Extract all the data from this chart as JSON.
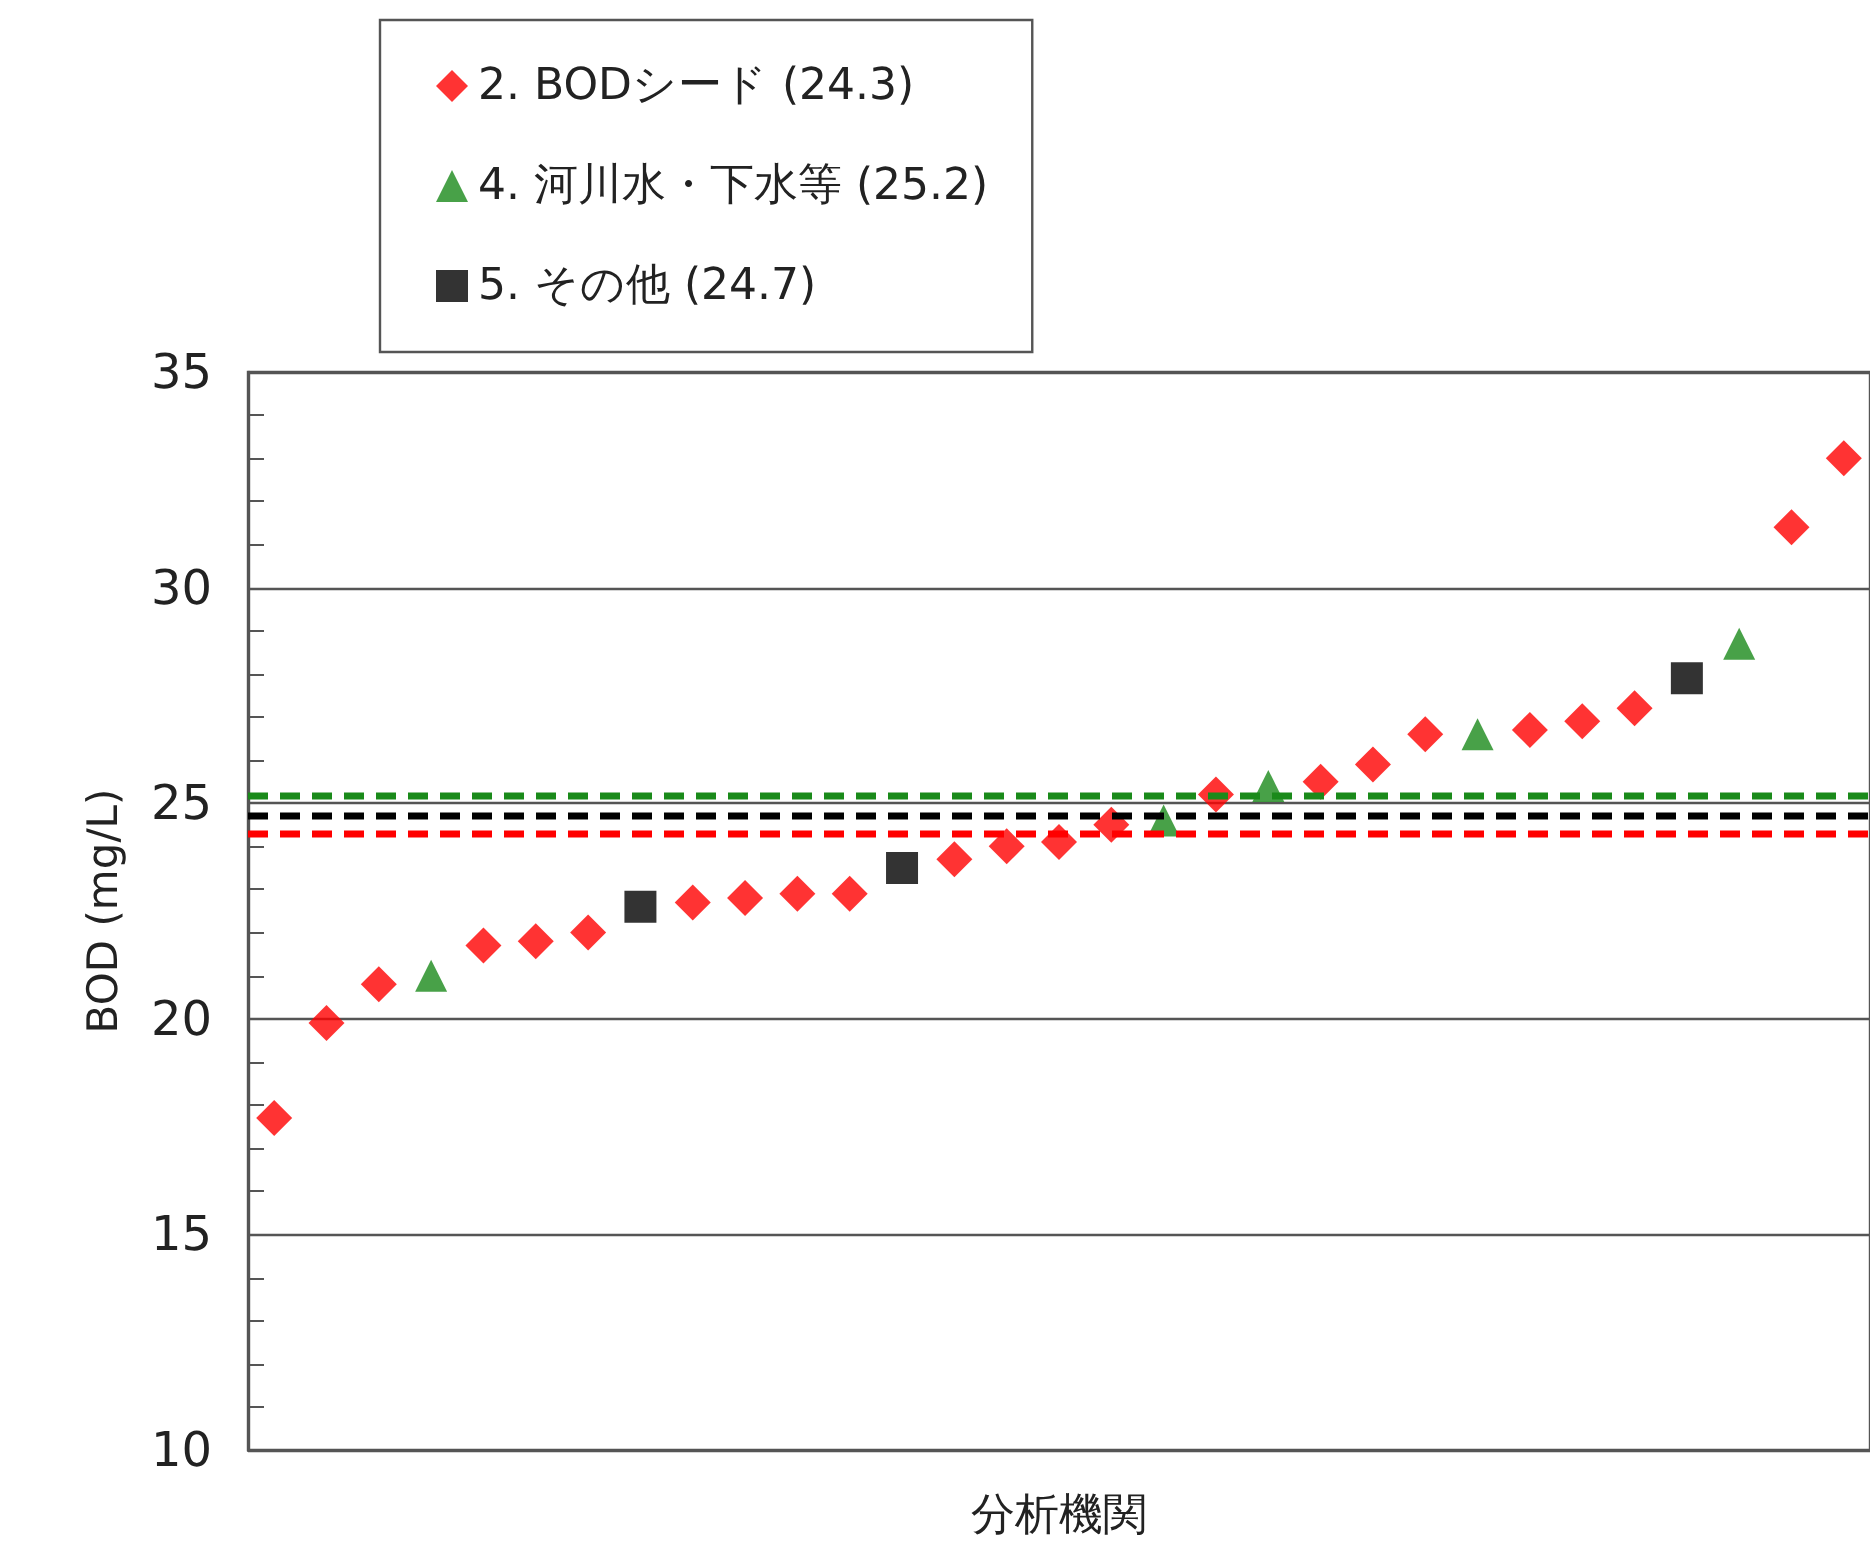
{
  "chart_data": {
    "type": "scatter",
    "xlabel": "分析機関",
    "ylabel": "BOD (mg/L)",
    "categories": [
      null,
      null,
      null,
      null,
      null,
      null,
      null,
      null,
      null,
      null,
      null,
      null,
      null,
      null,
      null,
      null,
      null,
      null,
      null,
      null,
      null,
      null,
      null,
      null,
      null,
      null,
      null,
      null,
      null,
      null,
      null
    ],
    "series": [
      {
        "name": "2. BODシード (24.3)",
        "color": "#ff0000",
        "marker": "diamond",
        "values": [
          17.7,
          19.9,
          20.8,
          null,
          21.7,
          21.8,
          22.0,
          null,
          22.7,
          22.8,
          22.9,
          22.9,
          null,
          23.7,
          24.0,
          24.1,
          24.5,
          null,
          25.2,
          null,
          25.5,
          25.9,
          26.6,
          null,
          26.7,
          26.9,
          27.2,
          null,
          null,
          31.4,
          33.0
        ]
      },
      {
        "name": "4. 河川水・下水等 (25.2)",
        "color": "#1a8a1a",
        "marker": "triangle",
        "values": [
          null,
          null,
          null,
          21.0,
          null,
          null,
          null,
          null,
          null,
          null,
          null,
          null,
          null,
          null,
          null,
          null,
          null,
          24.6,
          null,
          25.4,
          null,
          null,
          null,
          26.6,
          null,
          null,
          null,
          null,
          28.7,
          null,
          null
        ]
      },
      {
        "name": "5. その他 (24.7)",
        "color": "#000000",
        "marker": "square",
        "values": [
          null,
          null,
          null,
          null,
          null,
          null,
          null,
          22.6,
          null,
          null,
          null,
          null,
          23.5,
          null,
          null,
          null,
          null,
          null,
          null,
          null,
          null,
          null,
          null,
          null,
          null,
          null,
          null,
          27.9,
          null,
          null,
          null
        ]
      }
    ],
    "ylim": [
      10,
      35
    ],
    "yticks": [
      10,
      {
        "value": 11,
        "label": null
      },
      {
        "value": 12,
        "label": null
      },
      {
        "value": 13,
        "label": null
      },
      {
        "value": 14,
        "label": null
      },
      15,
      {
        "value": 16,
        "label": null
      },
      {
        "value": 17,
        "label": null
      },
      {
        "value": 18,
        "label": null
      },
      {
        "value": 19,
        "label": null
      },
      20,
      {
        "value": 21,
        "label": null
      },
      {
        "value": 22,
        "label": null
      },
      {
        "value": 23,
        "label": null
      },
      {
        "value": 24,
        "label": null
      },
      25,
      {
        "value": 26,
        "label": null
      },
      {
        "value": 27,
        "label": null
      },
      {
        "value": 28,
        "label": null
      },
      {
        "value": 29,
        "label": null
      },
      30,
      {
        "value": 31,
        "label": null
      },
      {
        "value": 32,
        "label": null
      },
      {
        "value": 33,
        "label": null
      },
      {
        "value": 34,
        "label": null
      },
      35
    ],
    "ref_lines": [
      {
        "axis": "y",
        "value": 24.3,
        "color": "#ff0000",
        "line_style": "dashed"
      },
      {
        "axis": "y",
        "value": 25.2,
        "color": "#1a8a1a",
        "line_style": "dashed"
      },
      {
        "axis": "y",
        "value": 24.7,
        "color": "#000000",
        "line_style": "dashed"
      }
    ],
    "grid": "y",
    "legend": "top left",
    "tick_labels": "y"
  }
}
